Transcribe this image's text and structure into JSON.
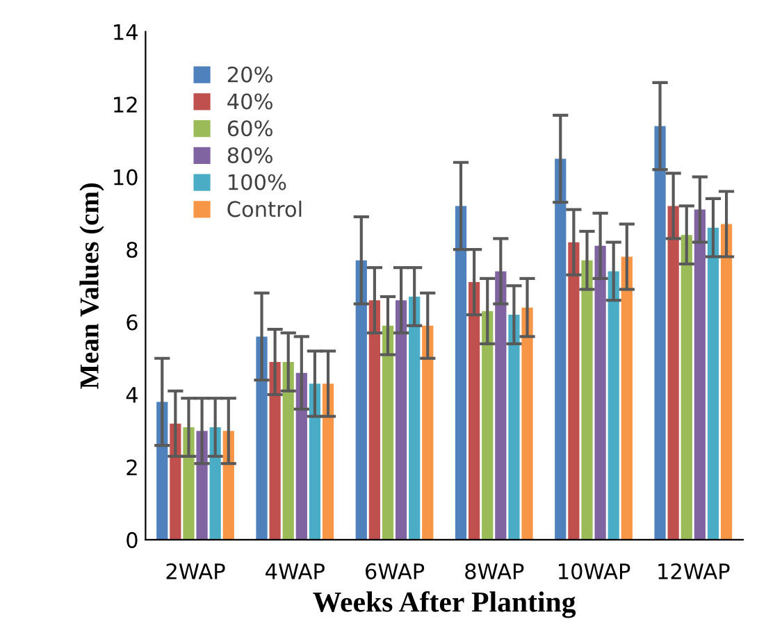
{
  "chart_data": {
    "type": "bar",
    "xlabel": "Weeks After Planting",
    "ylabel": "Mean Values (cm)",
    "categories": [
      "2WAP",
      "4WAP",
      "6WAP",
      "8WAP",
      "10WAP",
      "12WAP"
    ],
    "series": [
      {
        "name": "20%",
        "color": "#4f81bd",
        "values": [
          3.8,
          5.6,
          7.7,
          9.2,
          10.5,
          11.4
        ],
        "errors": [
          1.2,
          1.2,
          1.2,
          1.2,
          1.2,
          1.2
        ]
      },
      {
        "name": "40%",
        "color": "#c0504d",
        "values": [
          3.2,
          4.9,
          6.6,
          7.1,
          8.2,
          9.2
        ],
        "errors": [
          0.9,
          0.9,
          0.9,
          0.9,
          0.9,
          0.9
        ]
      },
      {
        "name": "60%",
        "color": "#9bbb59",
        "values": [
          3.1,
          4.9,
          5.9,
          6.3,
          7.7,
          8.4
        ],
        "errors": [
          0.8,
          0.8,
          0.8,
          0.9,
          0.8,
          0.8
        ]
      },
      {
        "name": "80%",
        "color": "#8064a2",
        "values": [
          3.0,
          4.6,
          6.6,
          7.4,
          8.1,
          9.1
        ],
        "errors": [
          0.9,
          1.0,
          0.9,
          0.9,
          0.9,
          0.9
        ]
      },
      {
        "name": "100%",
        "color": "#4bacc6",
        "values": [
          3.1,
          4.3,
          6.7,
          6.2,
          7.4,
          8.6
        ],
        "errors": [
          0.8,
          0.9,
          0.8,
          0.8,
          0.8,
          0.8
        ]
      },
      {
        "name": "Control",
        "color": "#f79646",
        "values": [
          3.0,
          4.3,
          5.9,
          6.4,
          7.8,
          8.7
        ],
        "errors": [
          0.9,
          0.9,
          0.9,
          0.8,
          0.9,
          0.9
        ]
      }
    ],
    "ylim": [
      0,
      14
    ],
    "yticks": [
      0,
      2,
      4,
      6,
      8,
      10,
      12,
      14
    ],
    "grid": false,
    "legend": "top left"
  }
}
